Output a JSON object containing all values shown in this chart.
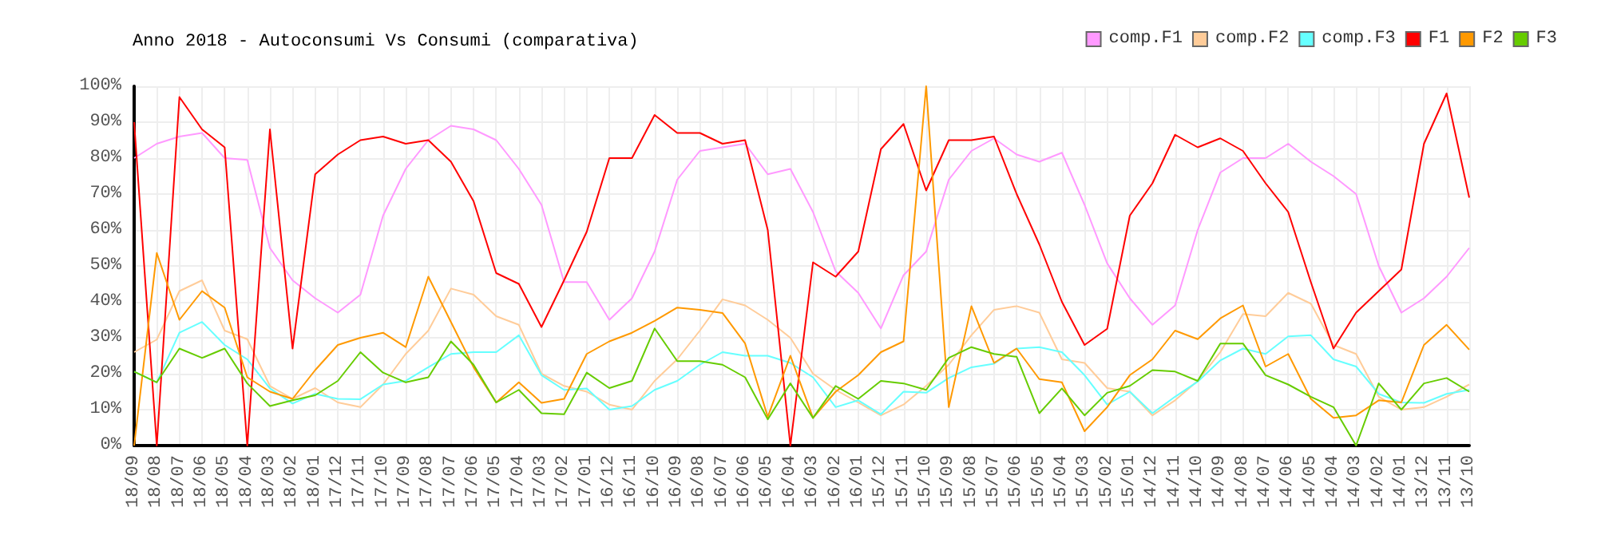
{
  "chart_data": {
    "type": "line",
    "title": "Anno 2018 - Autoconsumi Vs Consumi (comparativa)",
    "categories": [
      "18/09",
      "18/08",
      "18/07",
      "18/06",
      "18/05",
      "18/04",
      "18/03",
      "18/02",
      "18/01",
      "17/12",
      "17/11",
      "17/10",
      "17/09",
      "17/08",
      "17/07",
      "17/06",
      "17/05",
      "17/04",
      "17/03",
      "17/02",
      "17/01",
      "16/12",
      "16/11",
      "16/10",
      "16/09",
      "16/08",
      "16/07",
      "16/06",
      "16/05",
      "16/04",
      "16/03",
      "16/02",
      "16/01",
      "15/12",
      "15/11",
      "15/10",
      "15/09",
      "15/08",
      "15/07",
      "15/06",
      "15/05",
      "15/04",
      "15/03",
      "15/02",
      "15/01",
      "14/12",
      "14/11",
      "14/10",
      "14/09",
      "14/08",
      "14/07",
      "14/06",
      "14/05",
      "14/04",
      "14/03",
      "14/02",
      "14/01",
      "13/12",
      "13/11",
      "13/10"
    ],
    "series": [
      {
        "name": "comp.F1",
        "color": "#ff99ff",
        "values": [
          80,
          84,
          86,
          87,
          80,
          79.5,
          55,
          46,
          41,
          37,
          42,
          64,
          77,
          85,
          89,
          88,
          85,
          77,
          67,
          45.5,
          45.5,
          35,
          41,
          54,
          74,
          82,
          83,
          84,
          75.5,
          77,
          65,
          48.5,
          42.5,
          32.6,
          47.4,
          54,
          74,
          82,
          85.5,
          81,
          79,
          81.5,
          67,
          50.7,
          41,
          33.6,
          39,
          60,
          76,
          80,
          80,
          84,
          79,
          75,
          70,
          50,
          37,
          41,
          47,
          55
        ]
      },
      {
        "name": "comp.F2",
        "color": "#ffcc99",
        "values": [
          26,
          29.5,
          43,
          46,
          32,
          29.6,
          16.6,
          13,
          16,
          12,
          10.7,
          17,
          25.5,
          32,
          43.7,
          42,
          36,
          33.6,
          20,
          16.6,
          15,
          11.4,
          10,
          18,
          24,
          32,
          40.7,
          39,
          35,
          30,
          20,
          15.5,
          12,
          8.4,
          11.4,
          16.6,
          22.5,
          30.7,
          37.8,
          38.8,
          37,
          24,
          23,
          16,
          15,
          8.4,
          12.6,
          18,
          26,
          36.6,
          36,
          42.5,
          39.5,
          28,
          25.5,
          13.6,
          10,
          10.7,
          13.6,
          17
        ]
      },
      {
        "name": "comp.F3",
        "color": "#66ffff",
        "values": [
          20.6,
          17.6,
          31.4,
          34.4,
          28,
          24,
          15.9,
          11.7,
          14.4,
          13,
          12.9,
          17,
          18,
          21.8,
          25.5,
          26,
          26,
          30.7,
          19.6,
          15.5,
          15.9,
          10,
          11,
          15.5,
          18,
          22.5,
          26,
          25,
          25,
          23,
          19,
          10.7,
          12.6,
          8.7,
          15,
          14.7,
          18.8,
          21.8,
          22.8,
          27,
          27.4,
          26,
          19.6,
          11.4,
          15,
          9,
          13.6,
          17.8,
          23.7,
          27,
          25.5,
          30.4,
          30.7,
          24,
          22,
          14.4,
          12,
          11.9,
          14.4,
          15.5
        ]
      },
      {
        "name": "F1",
        "color": "#ff0000",
        "values": [
          90,
          0,
          97,
          88,
          83,
          0,
          88,
          27,
          75.5,
          81,
          85,
          86,
          84,
          85,
          79,
          68,
          48,
          45,
          33,
          46,
          59.5,
          80,
          80,
          92,
          87,
          87,
          84,
          85,
          60,
          0,
          51,
          47,
          54,
          82.5,
          89.5,
          71,
          85,
          85,
          86,
          70,
          56,
          40,
          28,
          32.5,
          64,
          73,
          86.5,
          83,
          85.5,
          82,
          73,
          65,
          45.5,
          27,
          37,
          43,
          49,
          84,
          98,
          69
        ]
      },
      {
        "name": "F2",
        "color": "#ff9900",
        "values": [
          0,
          53.6,
          35,
          43,
          38.4,
          19,
          15,
          13,
          21,
          28,
          30,
          31.4,
          27.4,
          47,
          34.4,
          21.8,
          12,
          17.6,
          11.9,
          13,
          25.5,
          29,
          31.4,
          34.7,
          38.4,
          37.8,
          36.9,
          28.4,
          8,
          25,
          7.7,
          15,
          19.6,
          26,
          29,
          100,
          10.7,
          38.8,
          23,
          27,
          18.5,
          17.6,
          4,
          10.7,
          19.6,
          24,
          32,
          29.6,
          35.4,
          39,
          22,
          25.5,
          13,
          7.7,
          8.4,
          12.6,
          12,
          28,
          33.6,
          26.7
        ]
      },
      {
        "name": "F3",
        "color": "#66cc00",
        "values": [
          20.6,
          17.6,
          27,
          24.4,
          27,
          17.3,
          11,
          12.6,
          14,
          18,
          26,
          20.3,
          17.6,
          19,
          29,
          22.5,
          12,
          15.5,
          9,
          8.7,
          20.3,
          16,
          18,
          32.6,
          23.5,
          23.5,
          22.5,
          19,
          7.3,
          17.3,
          7.7,
          16.6,
          13,
          18,
          17.3,
          15.5,
          24.4,
          27.4,
          25.5,
          24.7,
          9,
          15.9,
          8.4,
          14.7,
          16.6,
          21,
          20.6,
          18,
          28.4,
          28.4,
          19.6,
          17,
          13.6,
          10.7,
          0,
          17.3,
          10,
          17.3,
          18.8,
          15
        ]
      }
    ],
    "ylim": [
      0,
      100
    ],
    "yticks": [
      {
        "value": 0,
        "label": "0%"
      },
      {
        "value": 10,
        "label": "10%"
      },
      {
        "value": 20,
        "label": "20%"
      },
      {
        "value": 30,
        "label": "30%"
      },
      {
        "value": 40,
        "label": "40%"
      },
      {
        "value": 50,
        "label": "50%"
      },
      {
        "value": 60,
        "label": "60%"
      },
      {
        "value": 70,
        "label": "70%"
      },
      {
        "value": 80,
        "label": "80%"
      },
      {
        "value": 90,
        "label": "90%"
      },
      {
        "value": 100,
        "label": "100%"
      }
    ],
    "grid": true,
    "legend": "top right",
    "marker": "none",
    "line_style": "solid"
  }
}
